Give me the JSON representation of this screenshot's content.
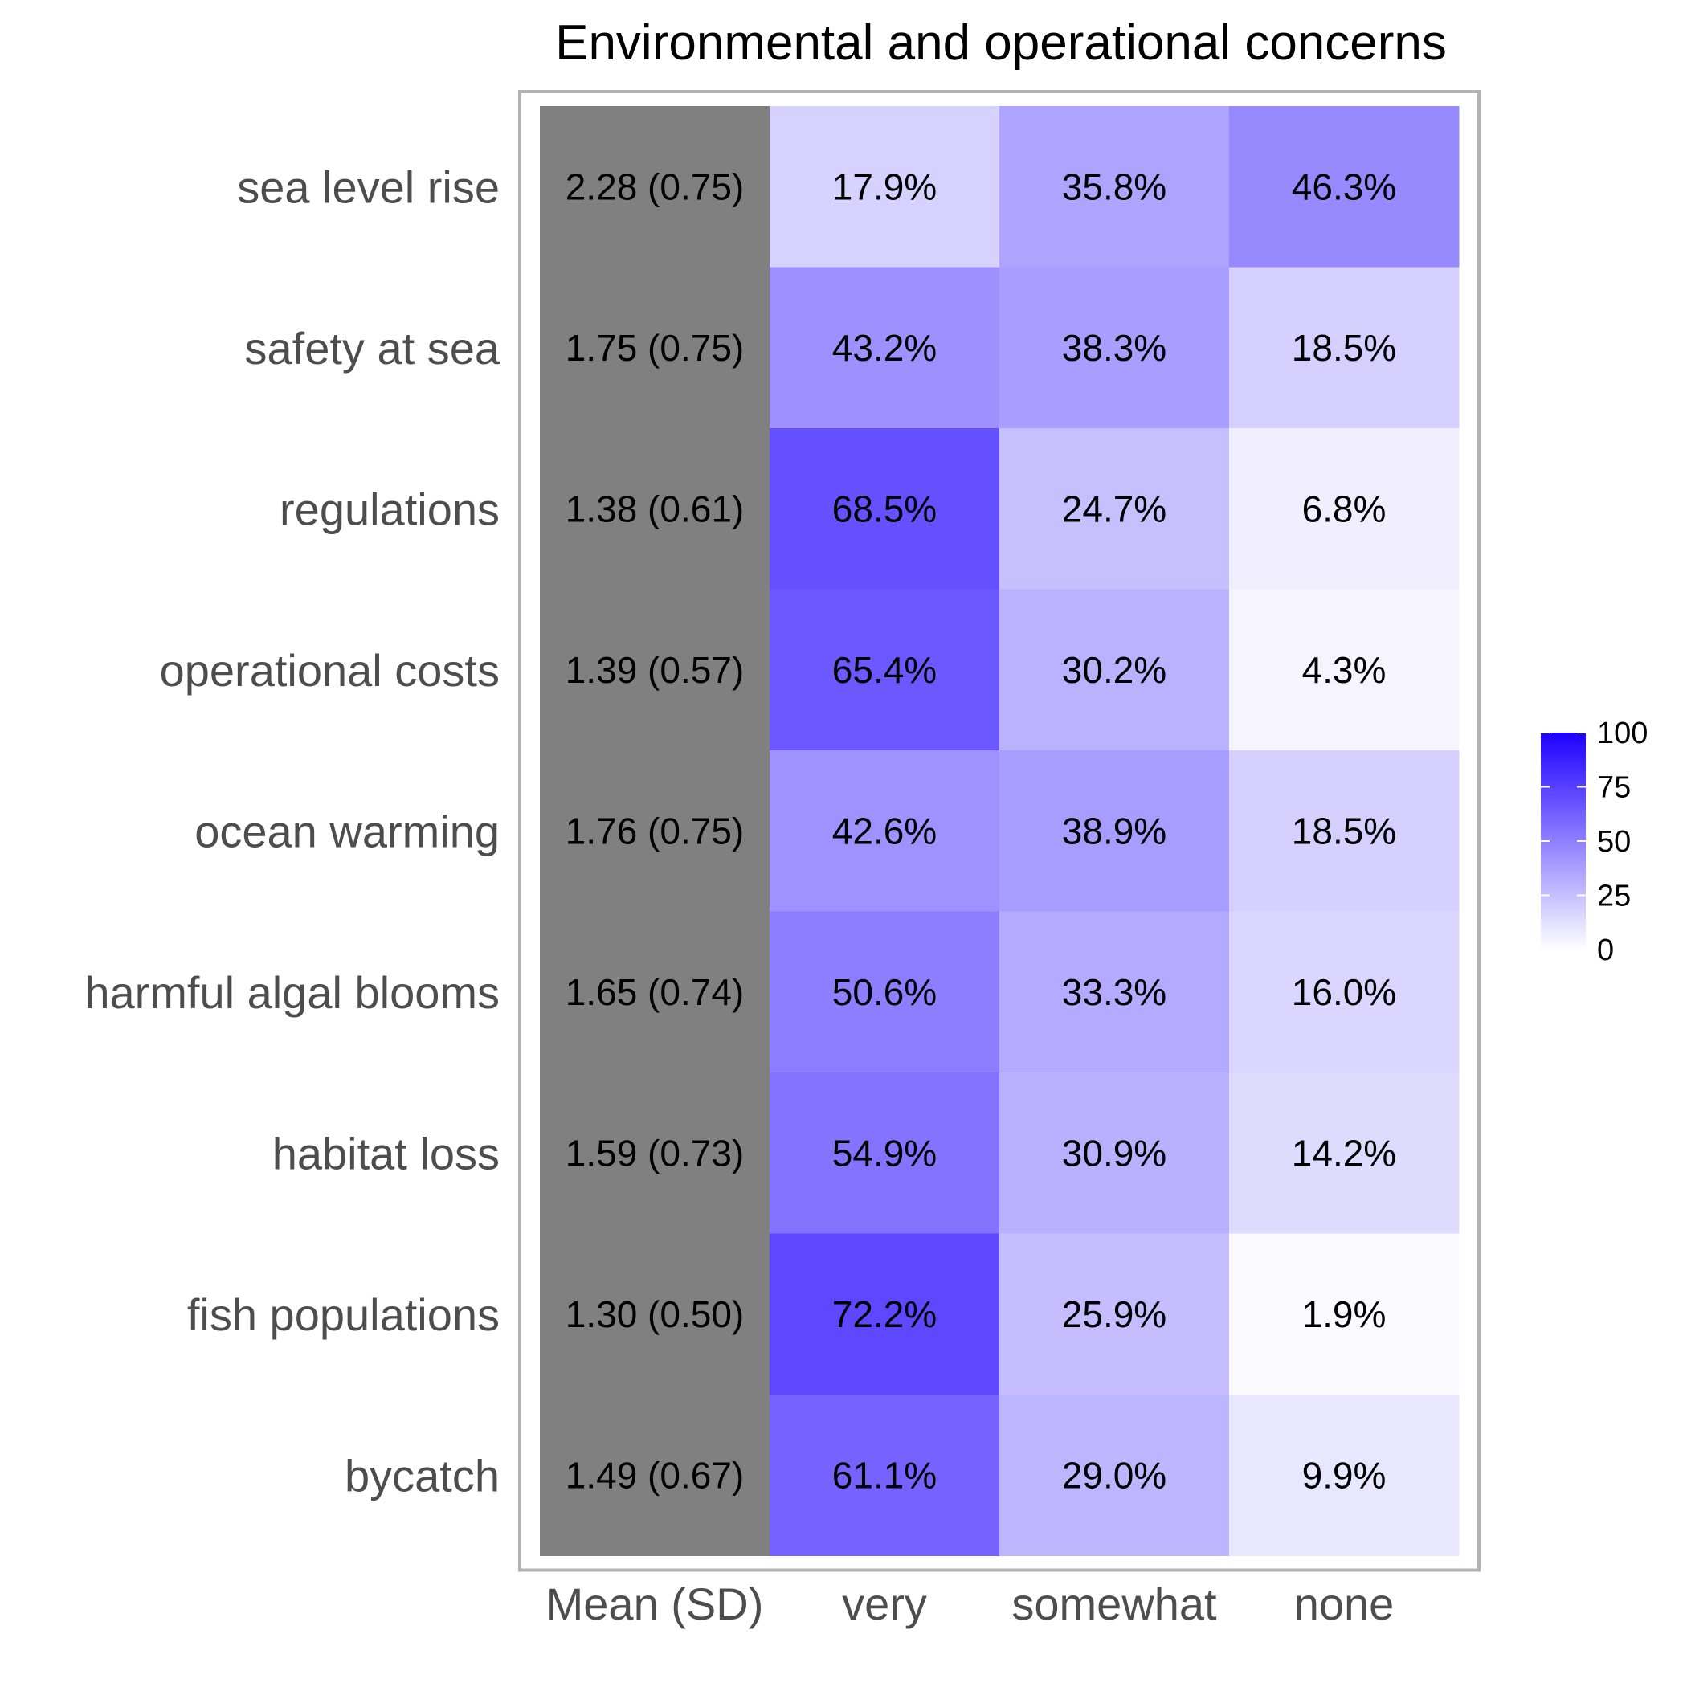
{
  "chart_data": {
    "type": "heatmap",
    "title": "Environmental and operational concerns",
    "columns": [
      "Mean (SD)",
      "very",
      "somewhat",
      "none"
    ],
    "rows": [
      "sea level rise",
      "safety at sea",
      "regulations",
      "operational costs",
      "ocean warming",
      "harmful algal blooms",
      "habitat loss",
      "fish populations",
      "bycatch"
    ],
    "mean_sd": [
      "2.28 (0.75)",
      "1.75 (0.75)",
      "1.38 (0.61)",
      "1.39 (0.57)",
      "1.76 (0.75)",
      "1.65 (0.74)",
      "1.59 (0.73)",
      "1.30 (0.50)",
      "1.49 (0.67)"
    ],
    "series": [
      {
        "name": "very",
        "values": [
          17.9,
          43.2,
          68.5,
          65.4,
          42.6,
          50.6,
          54.9,
          72.2,
          61.1
        ]
      },
      {
        "name": "somewhat",
        "values": [
          35.8,
          38.3,
          24.7,
          30.2,
          38.9,
          33.3,
          30.9,
          25.9,
          29.0
        ]
      },
      {
        "name": "none",
        "values": [
          46.3,
          18.5,
          6.8,
          4.3,
          18.5,
          16.0,
          14.2,
          1.9,
          9.9
        ]
      }
    ],
    "value_suffix": "%",
    "legend": {
      "ticks": [
        0,
        25,
        50,
        75,
        100
      ],
      "range": [
        0,
        100
      ],
      "low_color": "#ffffff",
      "high_color": "#1e00ff",
      "placement": "right"
    },
    "mean_cell_color": "#808080",
    "panel_border_color": "#b3b3b3",
    "grid": false
  }
}
